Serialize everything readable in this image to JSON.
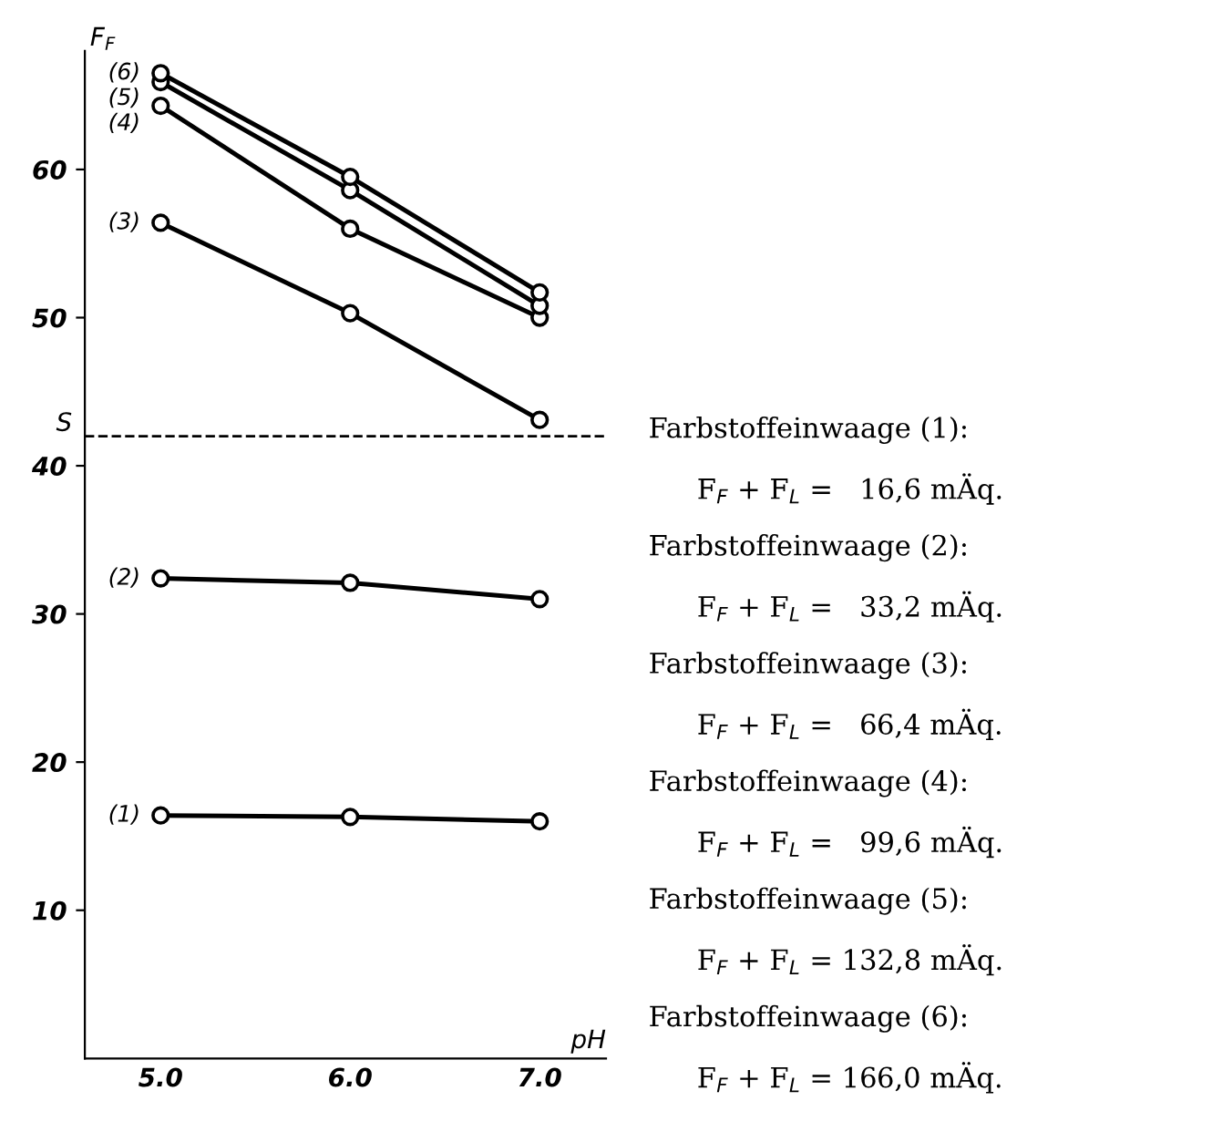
{
  "chart_data": {
    "type": "line",
    "xlabel": "pH",
    "ylabel": "F$_{F}$",
    "x": [
      5.0,
      6.0,
      7.0
    ],
    "series": [
      {
        "name": "(1)",
        "color": "#000000",
        "values": [
          16.4,
          16.3,
          16.0
        ]
      },
      {
        "name": "(2)",
        "color": "#000000",
        "values": [
          32.4,
          32.1,
          31.0
        ]
      },
      {
        "name": "(3)",
        "color": "#000000",
        "values": [
          56.4,
          50.3,
          43.1
        ]
      },
      {
        "name": "(4)",
        "color": "#000000",
        "values": [
          64.3,
          56.0,
          50.0
        ]
      },
      {
        "name": "(5)",
        "color": "#000000",
        "values": [
          65.9,
          58.6,
          50.8
        ]
      },
      {
        "name": "(6)",
        "color": "#000000",
        "values": [
          66.5,
          59.5,
          51.7
        ]
      }
    ],
    "xlim": [
      4.6,
      7.35
    ],
    "ylim": [
      0,
      68
    ],
    "xticks": [
      {
        "value": 5.0,
        "label": "5.0"
      },
      {
        "value": 6.0,
        "label": "6.0"
      },
      {
        "value": 7.0,
        "label": "7.0"
      }
    ],
    "yticks": [
      10,
      20,
      30,
      40,
      50,
      60
    ],
    "ref_lines": [
      {
        "axis": "y",
        "value": 42,
        "label": "S",
        "color": "#000000",
        "line_style": "dashed"
      }
    ],
    "marker": "circle",
    "line_style": "solid",
    "grid": false,
    "legend": false,
    "annotations": [
      "Farbstoffeinwaage (1):",
      "F$_{F}$ + F$_{L}$ =   16,6 mÄq.",
      "Farbstoffeinwaage (2):",
      "F$_{F}$ + F$_{L}$ =   33,2 mÄq.",
      "Farbstoffeinwaage (3):",
      "F$_{F}$ + F$_{L}$ =   66,4 mÄq.",
      "Farbstoffeinwaage (4):",
      "F$_{F}$ + F$_{L}$ =   99,6 mÄq.",
      "Farbstoffeinwaage (5):",
      "F$_{F}$ + F$_{L}$ = 132,8 mÄq.",
      "Farbstoffeinwaage (6):",
      "F$_{F}$ + F$_{L}$ = 166,0 mÄq."
    ]
  }
}
